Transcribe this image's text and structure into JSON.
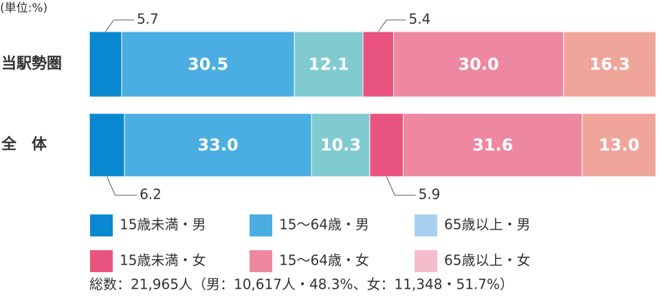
{
  "chart_data": {
    "type": "stacked-bar-horizontal",
    "unit": "(単位:%)",
    "categories": [
      "当駅勢圏",
      "全　体"
    ],
    "series": [
      {
        "name": "15歳未満・男",
        "color": "#0a88cf",
        "values": [
          5.7,
          6.2
        ],
        "value_labels": [
          "5.7",
          "6.2"
        ]
      },
      {
        "name": "15〜64歳・男",
        "color": "#4aaee3",
        "values": [
          30.5,
          33.0
        ],
        "value_labels": [
          "30.5",
          "33.0"
        ]
      },
      {
        "name": "65歳以上・男",
        "color": "#80cbd0",
        "legend_color": "#a9d0ee",
        "values": [
          12.1,
          10.3
        ],
        "value_labels": [
          "12.1",
          "10.3"
        ]
      },
      {
        "name": "15歳未満・女",
        "color": "#e8547f",
        "values": [
          5.4,
          5.9
        ],
        "value_labels": [
          "5.4",
          "5.9"
        ]
      },
      {
        "name": "15〜64歳・女",
        "color": "#ee88a0",
        "values": [
          30.0,
          31.6
        ],
        "value_labels": [
          "30.0",
          "31.6"
        ]
      },
      {
        "name": "65歳以上・女",
        "color": "#f0a59b",
        "legend_color": "#f5bccb",
        "values": [
          16.3,
          13.0
        ],
        "value_labels": [
          "16.3",
          "13.0"
        ]
      }
    ],
    "note": "総数：21,965人（男：10,617人・48.3%、女：11,348・51.7%）"
  }
}
